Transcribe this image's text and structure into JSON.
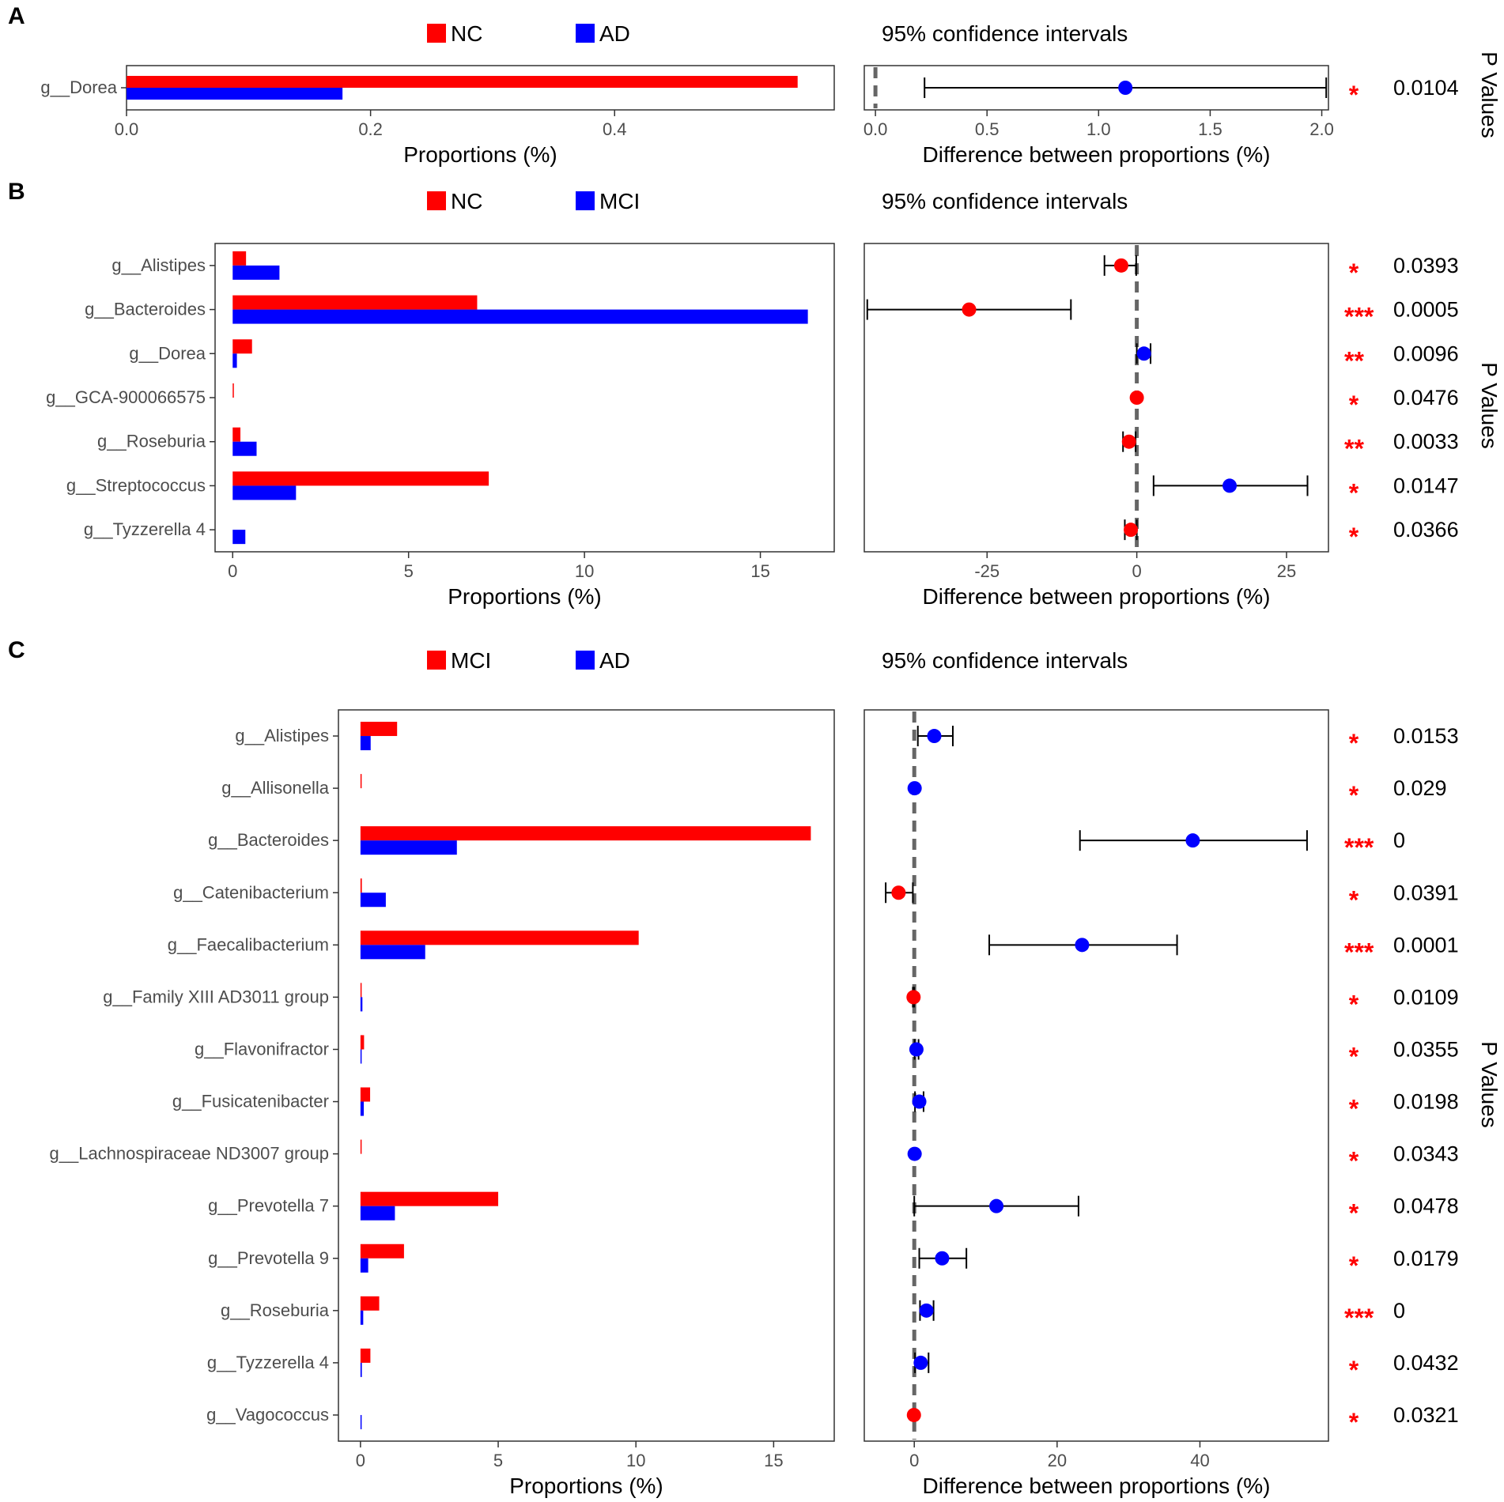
{
  "colors": {
    "group1": "#ff0000",
    "group2": "#0000ff",
    "zero_line": "#666666"
  },
  "p_axis_title": "P Values",
  "chart_data": [
    {
      "panel": "A",
      "type": "bar",
      "legend": [
        "NC",
        "AD"
      ],
      "ci_title": "95% confidence intervals",
      "xlabel_left": "Proportions (%)",
      "xlabel_right": "Difference between proportions (%)",
      "xlim_left": [
        0,
        0.58
      ],
      "xticks_left": [
        0,
        0.2,
        0.4
      ],
      "xtick_labels_left": [
        "0.0",
        "0.2",
        "0.4"
      ],
      "xlim_right": [
        -0.05,
        2.03
      ],
      "xticks_right": [
        0,
        0.5,
        1.0,
        1.5,
        2.0
      ],
      "xtick_labels_right": [
        "0.0",
        "0.5",
        "1.0",
        "1.5",
        "2.0"
      ],
      "rows": [
        {
          "label": "g__Dorea",
          "g1": 0.55,
          "g2": 0.177,
          "diff": 1.12,
          "ci": [
            0.22,
            2.02
          ],
          "stars": "*",
          "p": "0.0104"
        }
      ]
    },
    {
      "panel": "B",
      "type": "bar",
      "legend": [
        "NC",
        "MCI"
      ],
      "ci_title": "95% confidence intervals",
      "xlabel_left": "Proportions (%)",
      "xlabel_right": "Difference between proportions (%)",
      "xlim_left": [
        -0.5,
        17.1
      ],
      "xticks_left": [
        0,
        5,
        10,
        15
      ],
      "xtick_labels_left": [
        "0",
        "5",
        "10",
        "15"
      ],
      "xlim_right": [
        -45.5,
        32
      ],
      "xticks_right": [
        -25,
        0,
        25
      ],
      "xtick_labels_right": [
        "-25",
        "0",
        "25"
      ],
      "rows": [
        {
          "label": "g__Alistipes",
          "g1": 0.38,
          "g2": 1.33,
          "diff": -2.6,
          "ci": [
            -5.4,
            -0.1
          ],
          "stars": "*",
          "p": "0.0393"
        },
        {
          "label": "g__Bacteroides",
          "g1": 6.95,
          "g2": 16.35,
          "diff": -28.0,
          "ci": [
            -45.0,
            -11.0
          ],
          "stars": "***",
          "p": "0.0005"
        },
        {
          "label": "g__Dorea",
          "g1": 0.55,
          "g2": 0.12,
          "diff": 1.2,
          "ci": [
            0.0,
            2.3
          ],
          "stars": "**",
          "p": "0.0096"
        },
        {
          "label": "g__GCA-900066575",
          "g1": 0.02,
          "g2": 0.0,
          "diff": 0.0,
          "ci": [
            0.0,
            0.0
          ],
          "stars": "*",
          "p": "0.0476"
        },
        {
          "label": "g__Roseburia",
          "g1": 0.22,
          "g2": 0.68,
          "diff": -1.3,
          "ci": [
            -2.3,
            -0.2
          ],
          "stars": "**",
          "p": "0.0033"
        },
        {
          "label": "g__Streptococcus",
          "g1": 7.28,
          "g2": 1.8,
          "diff": 15.5,
          "ci": [
            2.8,
            28.5
          ],
          "stars": "*",
          "p": "0.0147"
        },
        {
          "label": "g__Tyzzerella 4",
          "g1": 0.0,
          "g2": 0.36,
          "diff": -1.0,
          "ci": [
            -2.0,
            0.0
          ],
          "stars": "*",
          "p": "0.0366"
        }
      ]
    },
    {
      "panel": "C",
      "type": "bar",
      "legend": [
        "MCI",
        "AD"
      ],
      "ci_title": "95% confidence intervals",
      "xlabel_left": "Proportions (%)",
      "xlabel_right": "Difference between proportions (%)",
      "xlim_left": [
        -0.8,
        17.2
      ],
      "xticks_left": [
        0,
        5,
        10,
        15
      ],
      "xtick_labels_left": [
        "0",
        "5",
        "10",
        "15"
      ],
      "xlim_right": [
        -7,
        58
      ],
      "xticks_right": [
        0,
        20,
        40
      ],
      "xtick_labels_right": [
        "0",
        "20",
        "40"
      ],
      "rows": [
        {
          "label": "g__Alistipes",
          "g1": 1.33,
          "g2": 0.37,
          "diff": 2.8,
          "ci": [
            0.5,
            5.4
          ],
          "stars": "*",
          "p": "0.0153"
        },
        {
          "label": "g__Allisonella",
          "g1": 0.02,
          "g2": 0.0,
          "diff": 0.05,
          "ci": [
            0.05,
            0.05
          ],
          "stars": "*",
          "p": "0.029"
        },
        {
          "label": "g__Bacteroides",
          "g1": 16.35,
          "g2": 3.5,
          "diff": 39.0,
          "ci": [
            23.2,
            55.0
          ],
          "stars": "***",
          "p": "0"
        },
        {
          "label": "g__Catenibacterium",
          "g1": 0.05,
          "g2": 0.92,
          "diff": -2.2,
          "ci": [
            -4.0,
            -0.2
          ],
          "stars": "*",
          "p": "0.0391"
        },
        {
          "label": "g__Faecalibacterium",
          "g1": 10.1,
          "g2": 2.35,
          "diff": 23.5,
          "ci": [
            10.5,
            36.8
          ],
          "stars": "***",
          "p": "0.0001"
        },
        {
          "label": "g__Family XIII AD3011 group",
          "g1": 0.02,
          "g2": 0.07,
          "diff": -0.1,
          "ci": [
            -0.2,
            0.0
          ],
          "stars": "*",
          "p": "0.0109"
        },
        {
          "label": "g__Flavonifractor",
          "g1": 0.13,
          "g2": 0.04,
          "diff": 0.3,
          "ci": [
            0.05,
            0.6
          ],
          "stars": "*",
          "p": "0.0355"
        },
        {
          "label": "g__Fusicatenibacter",
          "g1": 0.35,
          "g2": 0.12,
          "diff": 0.7,
          "ci": [
            0.1,
            1.3
          ],
          "stars": "*",
          "p": "0.0198"
        },
        {
          "label": "g__Lachnospiraceae ND3007 group",
          "g1": 0.02,
          "g2": 0.0,
          "diff": 0.05,
          "ci": [
            0.05,
            0.05
          ],
          "stars": "*",
          "p": "0.0343"
        },
        {
          "label": "g__Prevotella 7",
          "g1": 5.0,
          "g2": 1.25,
          "diff": 11.5,
          "ci": [
            0.0,
            23.0
          ],
          "stars": "*",
          "p": "0.0478"
        },
        {
          "label": "g__Prevotella 9",
          "g1": 1.58,
          "g2": 0.28,
          "diff": 3.9,
          "ci": [
            0.7,
            7.3
          ],
          "stars": "*",
          "p": "0.0179"
        },
        {
          "label": "g__Roseburia",
          "g1": 0.68,
          "g2": 0.1,
          "diff": 1.7,
          "ci": [
            0.8,
            2.7
          ],
          "stars": "***",
          "p": "0"
        },
        {
          "label": "g__Tyzzerella 4",
          "g1": 0.36,
          "g2": 0.05,
          "diff": 0.9,
          "ci": [
            0.1,
            2.0
          ],
          "stars": "*",
          "p": "0.0432"
        },
        {
          "label": "g__Vagococcus",
          "g1": 0.0,
          "g2": 0.02,
          "diff": -0.05,
          "ci": [
            -0.05,
            -0.05
          ],
          "stars": "*",
          "p": "0.0321"
        }
      ]
    }
  ]
}
